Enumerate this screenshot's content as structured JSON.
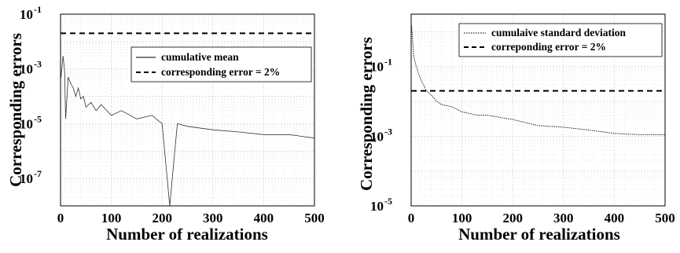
{
  "chart_data": [
    {
      "type": "line",
      "xlabel": "Number of realizations",
      "ylabel": "Corresponding errors",
      "xlim": [
        0,
        500
      ],
      "ylim_log10": [
        -8,
        -1
      ],
      "yscale": "log",
      "grid": true,
      "legend_position": "top-right",
      "x_ticks": [
        "0",
        "100",
        "200",
        "300",
        "400",
        "500"
      ],
      "y_ticks": [
        {
          "base": "10",
          "exp": "-1"
        },
        {
          "base": "10",
          "exp": "-3"
        },
        {
          "base": "10",
          "exp": "-5"
        },
        {
          "base": "10",
          "exp": "-7"
        }
      ],
      "series": [
        {
          "name": "cumulative mean",
          "style": "solid",
          "color": "#333333",
          "x": [
            1,
            5,
            8,
            10,
            15,
            20,
            25,
            30,
            35,
            40,
            45,
            50,
            60,
            70,
            80,
            100,
            120,
            150,
            180,
            200,
            215,
            230,
            250,
            300,
            350,
            400,
            450,
            500
          ],
          "y": [
            0.0005,
            0.003,
            0.0008,
            1.5e-05,
            0.0005,
            0.0003,
            0.0002,
            0.0001,
            0.0002,
            8e-05,
            0.0001,
            4e-05,
            6e-05,
            3e-05,
            5e-05,
            2e-05,
            3e-05,
            1.5e-05,
            2e-05,
            1e-05,
            1e-08,
            1e-05,
            8e-06,
            6e-06,
            5e-06,
            4e-06,
            4e-06,
            3e-06
          ]
        },
        {
          "name": "corresponding error = 2%",
          "style": "dashed",
          "color": "#000000",
          "x": [
            0,
            500
          ],
          "y": [
            0.02,
            0.02
          ]
        }
      ]
    },
    {
      "type": "line",
      "xlabel": "Number of realizations",
      "ylabel": "Corresponding errors",
      "xlim": [
        0,
        500
      ],
      "ylim_log10": [
        -5,
        0.5
      ],
      "yscale": "log",
      "grid": true,
      "legend_position": "top-right",
      "x_ticks": [
        "0",
        "100",
        "200",
        "300",
        "400",
        "500"
      ],
      "y_ticks": [
        {
          "base": "10",
          "exp": "-1"
        },
        {
          "base": "10",
          "exp": "-3"
        },
        {
          "base": "10",
          "exp": "-5"
        }
      ],
      "series": [
        {
          "name": "cumulaive standard deviation",
          "style": "dotted",
          "color": "#222222",
          "x": [
            1,
            5,
            10,
            15,
            20,
            30,
            40,
            50,
            60,
            80,
            100,
            130,
            150,
            200,
            250,
            300,
            350,
            400,
            450,
            500
          ],
          "y": [
            1.5,
            0.2,
            0.1,
            0.06,
            0.04,
            0.02,
            0.015,
            0.01,
            0.008,
            0.007,
            0.005,
            0.004,
            0.004,
            0.003,
            0.002,
            0.0018,
            0.0015,
            0.0012,
            0.0011,
            0.0011
          ]
        },
        {
          "name": "correponding error = 2%",
          "style": "dashed",
          "color": "#000000",
          "x": [
            0,
            500
          ],
          "y": [
            0.02,
            0.02
          ]
        }
      ]
    }
  ]
}
